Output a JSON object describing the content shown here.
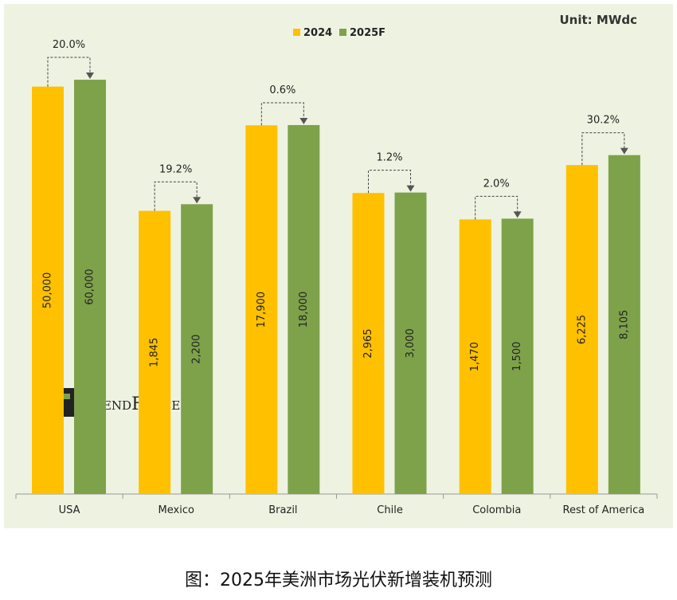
{
  "chart_data": {
    "type": "bar",
    "unit": "Unit: MWdc",
    "log_scale": true,
    "categories": [
      "USA",
      "Mexico",
      "Brazil",
      "Chile",
      "Colombia",
      "Rest of America"
    ],
    "series": [
      {
        "name": "2024",
        "color": "#ffc000",
        "values": [
          50000,
          1845,
          17900,
          2965,
          1470,
          6225
        ],
        "value_labels": [
          "50,000",
          "1,845",
          "17,900",
          "2,965",
          "1,470",
          "6,225"
        ]
      },
      {
        "name": "2025F",
        "color": "#7ea24a",
        "values": [
          60000,
          2200,
          18000,
          3000,
          1500,
          8105
        ],
        "value_labels": [
          "60,000",
          "2,200",
          "18,000",
          "3,000",
          "1,500",
          "8,105"
        ]
      }
    ],
    "annotations": [
      "20.0%",
      "19.2%",
      "0.6%",
      "1.2%",
      "2.0%",
      "30.2%"
    ],
    "ylim": [
      1,
      300000
    ],
    "logo": "TrendForce",
    "caption": "图：2025年美洲市场光伏新增装机预测"
  }
}
